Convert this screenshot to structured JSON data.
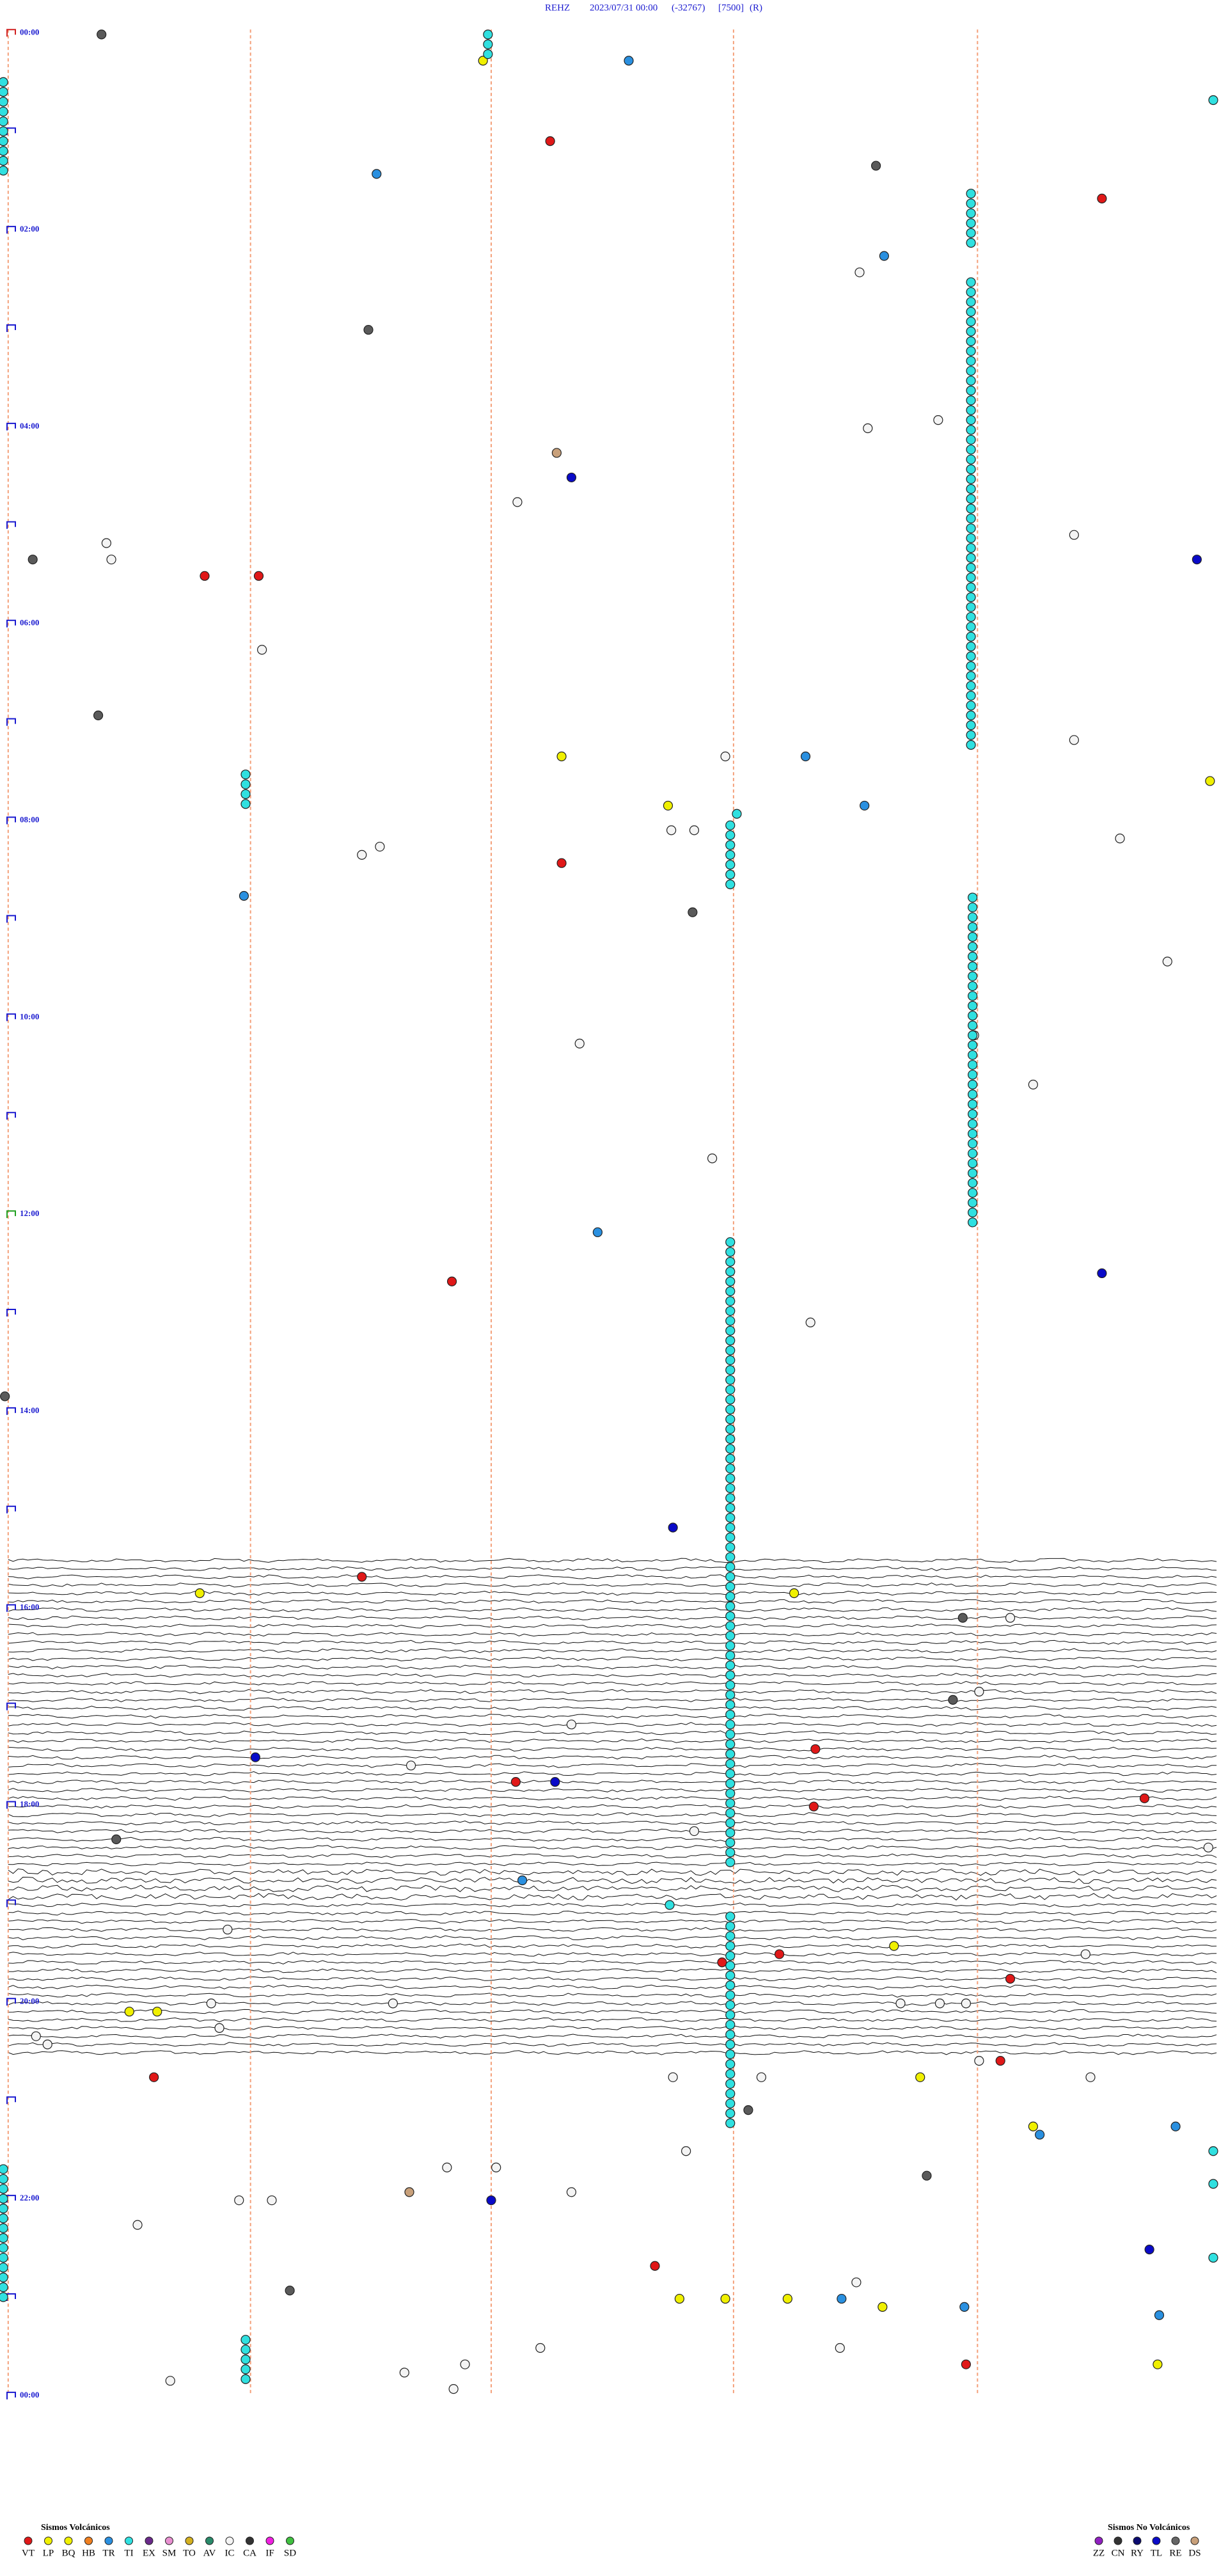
{
  "header": {
    "station": "REHZ",
    "datetime": "2023/07/31 00:00",
    "offset": "(-32767)",
    "scale": "[7500]",
    "mode": "(R)"
  },
  "time_labels": [
    "00:00",
    "02:00",
    "04:00",
    "06:00",
    "08:00",
    "10:00",
    "12:00",
    "14:00",
    "16:00",
    "18:00",
    "20:00",
    "22:00",
    "00:00"
  ],
  "legend_volcanic": {
    "title": "Sismos Volcánicos",
    "codes": [
      "VT",
      "LP",
      "BQ",
      "HB",
      "TR",
      "TI",
      "EX",
      "SM",
      "TO",
      "AV",
      "IC",
      "CA",
      "IF",
      "SD"
    ]
  },
  "legend_non_volcanic": {
    "title": "Sismos No Volcánicos",
    "codes": [
      "ZZ",
      "CN",
      "RY",
      "TL",
      "RE",
      "DS"
    ]
  }
}
